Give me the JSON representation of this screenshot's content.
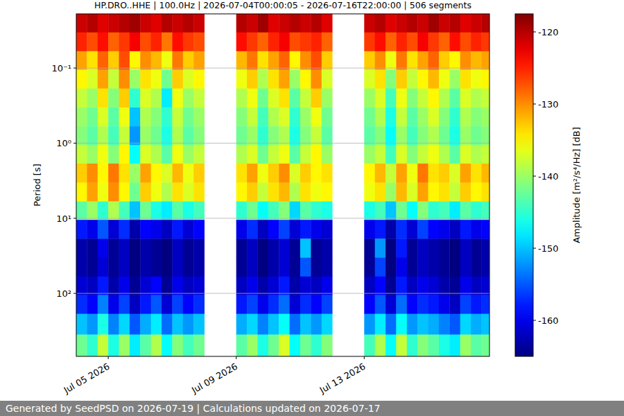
{
  "chart_data": {
    "type": "heatmap",
    "title": "HP.DRO..HHE | 100.0Hz | 2026-07-04T00:00:05 - 2026-07-16T22:00:00 | 506 segments",
    "footer": "Generated by SeedPSD on 2026-07-19 | Calculations updated on 2026-07-17",
    "y_label": "Period [s]",
    "colorbar_label": "Amplitude [m²/s⁴/Hz] [dB]",
    "log": "y",
    "grid": "y",
    "xlim": [
      "2026-07-04T00:00:05",
      "2026-07-16T22:00:00"
    ],
    "xticks": [
      {
        "value": "2026-07-05T00:00",
        "label": "Jul 05 2026"
      },
      {
        "value": "2026-07-09T00:00",
        "label": "Jul 09 2026"
      },
      {
        "value": "2026-07-13T00:00",
        "label": "Jul 13 2026"
      }
    ],
    "ylim": [
      0.019,
      690
    ],
    "yticks": [
      {
        "value": 0.1,
        "label": "10⁻¹"
      },
      {
        "value": 1,
        "label": "10⁰"
      },
      {
        "value": 10,
        "label": "10¹"
      },
      {
        "value": 100,
        "label": "10²"
      }
    ],
    "colorbar_range": [
      -165,
      -117.5
    ],
    "colorbar_ticks": [
      -160,
      -150,
      -140,
      -130,
      -120
    ],
    "x": [
      "2026-07-04T04:00",
      "2026-07-04T12:00",
      "2026-07-04T20:00",
      "2026-07-05T04:00",
      "2026-07-05T12:00",
      "2026-07-05T20:00",
      "2026-07-06T04:00",
      "2026-07-06T12:00",
      "2026-07-06T20:00",
      "2026-07-07T04:00",
      "2026-07-07T12:00",
      "2026-07-07T20:00",
      "2026-07-08T04:00",
      "2026-07-08T12:00",
      "2026-07-08T20:00",
      "2026-07-09T04:00",
      "2026-07-09T12:00",
      "2026-07-09T20:00",
      "2026-07-10T04:00",
      "2026-07-10T12:00",
      "2026-07-10T20:00",
      "2026-07-11T04:00",
      "2026-07-11T12:00",
      "2026-07-11T20:00",
      "2026-07-12T04:00",
      "2026-07-12T12:00",
      "2026-07-12T20:00",
      "2026-07-13T04:00",
      "2026-07-13T12:00",
      "2026-07-13T20:00",
      "2026-07-14T04:00",
      "2026-07-14T12:00",
      "2026-07-14T20:00",
      "2026-07-15T04:00",
      "2026-07-15T12:00",
      "2026-07-15T20:00",
      "2026-07-16T04:00",
      "2026-07-16T12:00",
      "2026-07-16T20:00"
    ],
    "y": [
      0.025,
      0.045,
      0.079,
      0.14,
      0.25,
      0.45,
      0.79,
      1.4,
      2.5,
      4.5,
      7.9,
      14,
      25,
      45,
      79,
      140,
      250,
      500
    ],
    "values": [
      [
        -121,
        -120,
        -122,
        -121,
        -120,
        -119,
        -121,
        -122,
        -120,
        -121,
        -120,
        -121,
        null,
        null,
        null,
        -120,
        -121,
        -119,
        -122,
        -121,
        -120,
        -121,
        -120,
        -122,
        null,
        null,
        null,
        -121,
        -120,
        -122,
        -121,
        -120,
        -121,
        -119,
        -121,
        -120,
        -122,
        -121,
        -120
      ],
      [
        -125,
        -127,
        -124,
        -128,
        -126,
        -123,
        -127,
        -125,
        -129,
        -124,
        -126,
        -127,
        null,
        null,
        null,
        -124,
        -126,
        -128,
        -125,
        -123,
        -127,
        -126,
        -125,
        -128,
        null,
        null,
        null,
        -126,
        -124,
        -128,
        -125,
        -127,
        -123,
        -126,
        -128,
        -124,
        -127,
        -125,
        -126
      ],
      [
        -131,
        -134,
        -128,
        -133,
        -127,
        -135,
        -130,
        -132,
        -136,
        -129,
        -133,
        -131,
        null,
        null,
        null,
        -132,
        -129,
        -134,
        -131,
        -128,
        -135,
        -130,
        -127,
        -133,
        null,
        null,
        null,
        -133,
        -130,
        -136,
        -129,
        -134,
        -131,
        -128,
        -133,
        -135,
        -130,
        -132,
        -131
      ],
      [
        -135,
        -137,
        -131,
        -138,
        -130,
        -140,
        -134,
        -136,
        -142,
        -133,
        -137,
        -135,
        null,
        null,
        null,
        -136,
        -133,
        -139,
        -134,
        -131,
        -140,
        -135,
        -130,
        -137,
        null,
        null,
        null,
        -137,
        -134,
        -141,
        -133,
        -138,
        -135,
        -132,
        -136,
        -140,
        -134,
        -136,
        -135
      ],
      [
        -138,
        -140,
        -134,
        -141,
        -133,
        -145,
        -137,
        -139,
        -148,
        -136,
        -140,
        -138,
        null,
        null,
        null,
        -139,
        -136,
        -142,
        -137,
        -134,
        -143,
        -138,
        -133,
        -140,
        null,
        null,
        null,
        -140,
        -137,
        -144,
        -136,
        -141,
        -138,
        -135,
        -139,
        -143,
        -137,
        -139,
        -138
      ],
      [
        -140,
        -142,
        -137,
        -143,
        -136,
        -150,
        -139,
        -141,
        -145,
        -138,
        -142,
        -140,
        null,
        null,
        null,
        -141,
        -138,
        -144,
        -139,
        -137,
        -145,
        -140,
        -136,
        -142,
        null,
        null,
        null,
        -142,
        -139,
        -146,
        -138,
        -143,
        -140,
        -137,
        -141,
        -145,
        -139,
        -141,
        -140
      ],
      [
        -141,
        -143,
        -139,
        -144,
        -138,
        -152,
        -140,
        -142,
        -146,
        -139,
        -143,
        -141,
        null,
        null,
        null,
        -142,
        -140,
        -145,
        -141,
        -139,
        -146,
        -141,
        -138,
        -143,
        null,
        null,
        null,
        -143,
        -141,
        -147,
        -140,
        -144,
        -141,
        -139,
        -142,
        -146,
        -140,
        -142,
        -141
      ],
      [
        -138,
        -140,
        -136,
        -141,
        -135,
        -147,
        -137,
        -139,
        -143,
        -136,
        -140,
        -138,
        null,
        null,
        null,
        -139,
        -137,
        -142,
        -138,
        -136,
        -143,
        -138,
        -135,
        -140,
        null,
        null,
        null,
        -140,
        -138,
        -144,
        -137,
        -141,
        -138,
        -136,
        -139,
        -143,
        -137,
        -139,
        -138
      ],
      [
        -133,
        -130,
        -135,
        -129,
        -134,
        -140,
        -131,
        -135,
        -137,
        -132,
        -136,
        -133,
        null,
        null,
        null,
        -134,
        -131,
        -136,
        -133,
        -130,
        -137,
        -133,
        -135,
        -134,
        null,
        null,
        null,
        -135,
        -132,
        -138,
        -131,
        -136,
        -129,
        -134,
        -133,
        -137,
        -131,
        -134,
        -132
      ],
      [
        -135,
        -131,
        -136,
        -130,
        -135,
        -142,
        -133,
        -136,
        -139,
        -134,
        -137,
        -134,
        null,
        null,
        null,
        -135,
        -133,
        -138,
        -134,
        -132,
        -139,
        -134,
        -136,
        -135,
        null,
        null,
        null,
        -136,
        -134,
        -140,
        -132,
        -137,
        -131,
        -135,
        -134,
        -138,
        -133,
        -135,
        -134
      ],
      [
        -143,
        -140,
        -145,
        -139,
        -144,
        -150,
        -142,
        -146,
        -148,
        -143,
        -146,
        -144,
        null,
        null,
        null,
        -145,
        -142,
        -147,
        -144,
        -141,
        -149,
        -143,
        -145,
        -146,
        null,
        null,
        null,
        -146,
        -144,
        -150,
        -142,
        -147,
        -141,
        -145,
        -144,
        -148,
        -143,
        -145,
        -144
      ],
      [
        -158,
        -160,
        -155,
        -161,
        -157,
        -163,
        -159,
        -160,
        -162,
        -158,
        -161,
        -159,
        null,
        null,
        null,
        -160,
        -157,
        -162,
        -159,
        -156,
        -161,
        -158,
        -160,
        -161,
        null,
        null,
        null,
        -160,
        -158,
        -163,
        -157,
        -161,
        -156,
        -159,
        -160,
        -162,
        -158,
        -160,
        -159
      ],
      [
        -163,
        -164,
        -160,
        -164,
        -162,
        -165,
        -163,
        -164,
        -165,
        -162,
        -164,
        -163,
        null,
        null,
        null,
        -164,
        -162,
        -165,
        -163,
        -161,
        -164,
        -150,
        -164,
        -163,
        null,
        null,
        null,
        -164,
        -152,
        -165,
        -158,
        -164,
        -162,
        -163,
        -164,
        -165,
        -162,
        -164,
        -163
      ],
      [
        -163,
        -164,
        -161,
        -164,
        -162,
        -165,
        -163,
        -164,
        -165,
        -162,
        -164,
        -163,
        null,
        null,
        null,
        -164,
        -162,
        -165,
        -163,
        -161,
        -164,
        -155,
        -164,
        -163,
        null,
        null,
        null,
        -164,
        -156,
        -165,
        -160,
        -164,
        -162,
        -163,
        -164,
        -165,
        -162,
        -164,
        -163
      ],
      [
        -161,
        -162,
        -158,
        -163,
        -160,
        -164,
        -161,
        -159,
        -164,
        -160,
        -162,
        -161,
        null,
        null,
        null,
        -162,
        -160,
        -163,
        -161,
        -158,
        -163,
        -161,
        -162,
        -160,
        null,
        null,
        null,
        -162,
        -159,
        -164,
        -158,
        -162,
        -160,
        -161,
        -163,
        -164,
        -160,
        -162,
        -161
      ],
      [
        -157,
        -159,
        -153,
        -160,
        -156,
        -162,
        -158,
        -155,
        -161,
        -156,
        -159,
        -157,
        null,
        null,
        null,
        -158,
        -156,
        -160,
        -157,
        -154,
        -161,
        -157,
        -159,
        -156,
        null,
        null,
        null,
        -159,
        -155,
        -161,
        -154,
        -159,
        -157,
        -158,
        -160,
        -162,
        -156,
        -158,
        -157
      ],
      [
        -150,
        -152,
        -146,
        -153,
        -149,
        -155,
        -151,
        -148,
        -154,
        -150,
        -152,
        -150,
        null,
        null,
        null,
        -151,
        -149,
        -153,
        -150,
        -147,
        -154,
        -150,
        -152,
        -149,
        null,
        null,
        null,
        -152,
        -148,
        -154,
        -147,
        -152,
        -150,
        -151,
        -153,
        -155,
        -149,
        -151,
        -150
      ],
      [
        -142,
        -145,
        -138,
        -146,
        -140,
        -148,
        -143,
        -139,
        -147,
        -141,
        -144,
        -142,
        null,
        null,
        null,
        -143,
        -140,
        -146,
        -142,
        -137,
        -147,
        -142,
        -145,
        -141,
        null,
        null,
        null,
        -144,
        -139,
        -147,
        -138,
        -145,
        -141,
        -143,
        -146,
        -148,
        -140,
        -143,
        -142
      ]
    ]
  }
}
